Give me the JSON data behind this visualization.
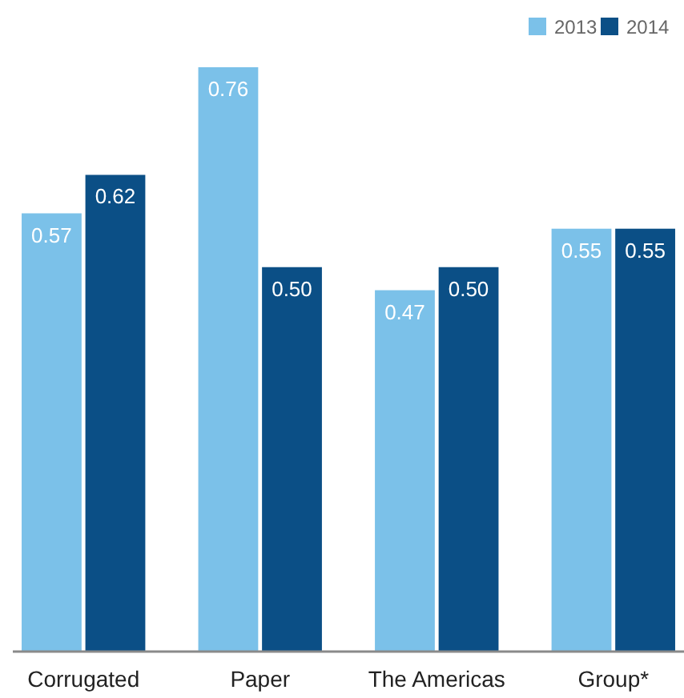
{
  "chart_data": {
    "type": "bar",
    "categories": [
      "Corrugated",
      "Paper",
      "The Americas",
      "Group*"
    ],
    "series": [
      {
        "name": "2013",
        "color": "#7bc1e9",
        "values": [
          0.57,
          0.76,
          0.47,
          0.55
        ],
        "value_labels": [
          "0.57",
          "0.76",
          "0.47",
          "0.55"
        ]
      },
      {
        "name": "2014",
        "color": "#0b4f86",
        "values": [
          0.62,
          0.5,
          0.5,
          0.55
        ],
        "value_labels": [
          "0.62",
          "0.50",
          "0.50",
          "0.55"
        ]
      }
    ],
    "legend": "top right"
  }
}
